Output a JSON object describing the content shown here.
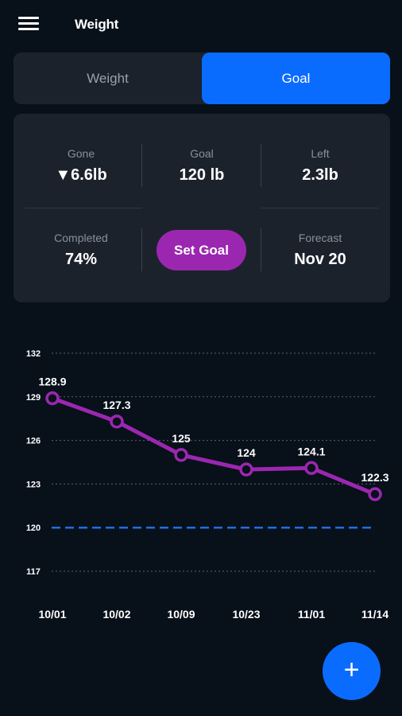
{
  "header": {
    "title": "Weight"
  },
  "tabs": [
    {
      "label": "Weight",
      "active": false
    },
    {
      "label": "Goal",
      "active": true
    }
  ],
  "stats": {
    "gone": {
      "label": "Gone",
      "value": "▼6.6lb"
    },
    "goal": {
      "label": "Goal",
      "value": "120 lb"
    },
    "left": {
      "label": "Left",
      "value": "2.3lb"
    },
    "completed": {
      "label": "Completed",
      "value": "74%"
    },
    "forecast": {
      "label": "Forecast",
      "value": "Nov 20"
    }
  },
  "set_goal_label": "Set Goal",
  "fab_label": "+",
  "colors": {
    "accent": "#0a6cff",
    "purple": "#9b27b0",
    "background": "#08101a",
    "card": "#1c222c"
  },
  "chart_data": {
    "type": "line",
    "categories": [
      "10/01",
      "10/02",
      "10/09",
      "10/23",
      "11/01",
      "11/14"
    ],
    "values": [
      128.9,
      127.3,
      125,
      124,
      124.1,
      122.3
    ],
    "value_labels": [
      "128.9",
      "127.3",
      "125",
      "124",
      "124.1",
      "122.3"
    ],
    "yticks": [
      132,
      129,
      126,
      123,
      120,
      117
    ],
    "goal_line": 120,
    "ylim": [
      117,
      132
    ],
    "grid": "horizontal dotted",
    "line_color": "#9b27b0",
    "goal_line_color": "#1f6fe0"
  }
}
